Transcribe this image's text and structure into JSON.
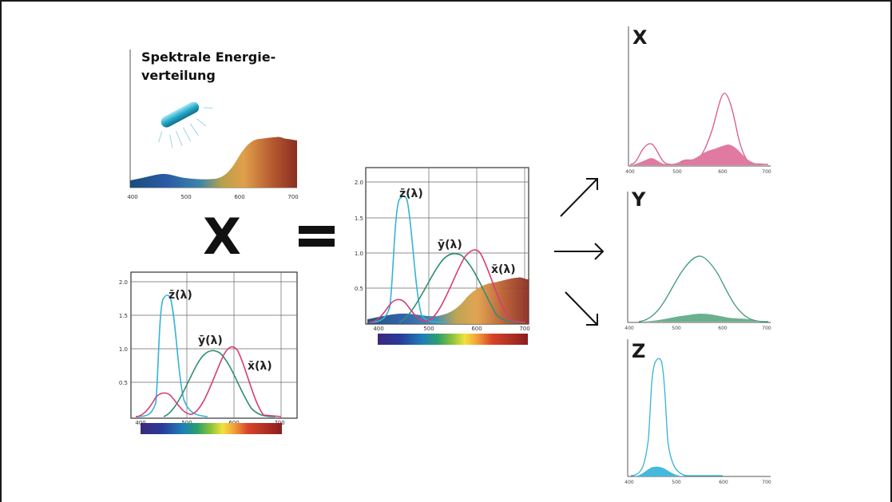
{
  "title_line1": "Spektrale Energie-",
  "title_line2": "verteilung",
  "multiply_symbol": "X",
  "equals_symbol": "=",
  "curve_labels": {
    "z": "z̄(λ)",
    "y": "ȳ(λ)",
    "x": "x̄(λ)"
  },
  "axis": {
    "x_ticks": [
      "400",
      "500",
      "600",
      "700"
    ],
    "y_ticks": [
      "2.0",
      "1.5",
      "1.0",
      "0.5"
    ]
  },
  "outputs": [
    {
      "label": "X",
      "color": "#d9588a"
    },
    {
      "label": "Y",
      "color": "#3e9a78"
    },
    {
      "label": "Z",
      "color": "#35b3d8"
    }
  ],
  "colors": {
    "z": "#35b3d8",
    "y": "#2f8f73",
    "x": "#d63c78"
  }
}
